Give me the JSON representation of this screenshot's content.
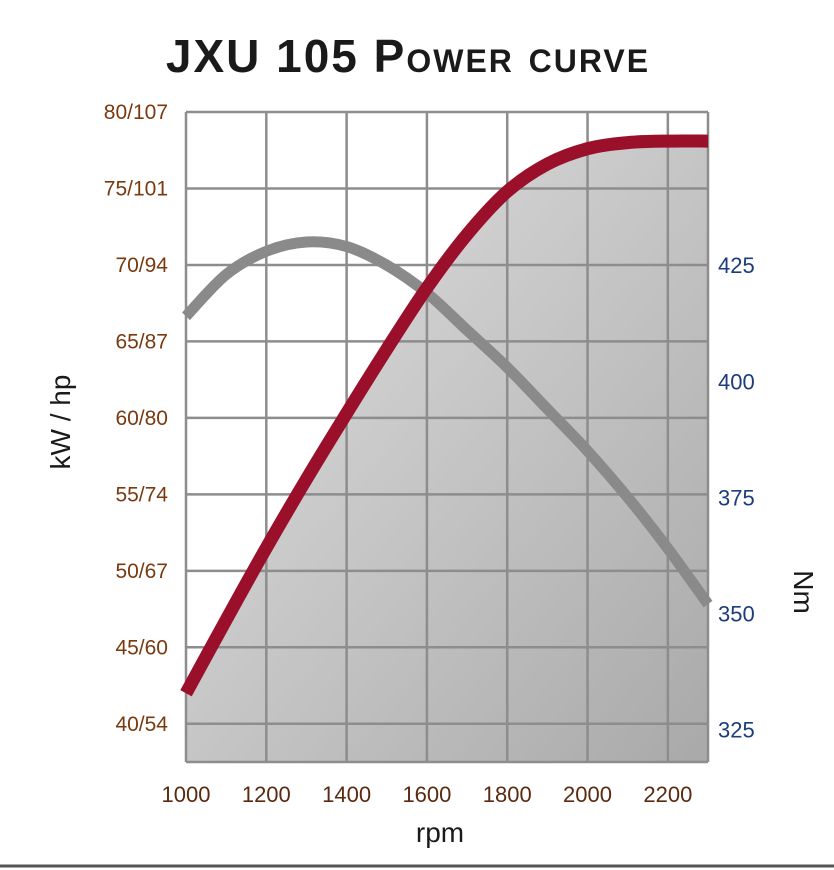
{
  "chart_data": {
    "type": "line",
    "title": "JXU 105 Power curve",
    "xlabel": "rpm",
    "ylabel_left": "kW / hp",
    "ylabel_right": "Nm",
    "x_ticks": [
      "1000",
      "1200",
      "1400",
      "1600",
      "1800",
      "2000",
      "2200"
    ],
    "xlim": [
      1000,
      2300
    ],
    "y_left_ticks": [
      "40/54",
      "45/60",
      "50/67",
      "55/74",
      "60/80",
      "65/87",
      "70/94",
      "75/101",
      "80/107"
    ],
    "y_left_lim": [
      37.5,
      80
    ],
    "y_right_ticks": [
      "325",
      "350",
      "375",
      "400",
      "425"
    ],
    "y_right_lim": [
      318,
      458
    ],
    "grid": true,
    "series": [
      {
        "name": "kW / hp",
        "axis": "left",
        "color": "#9a0f2a",
        "filled": true,
        "x": [
          1000,
          1100,
          1200,
          1300,
          1400,
          1500,
          1600,
          1700,
          1800,
          1900,
          2000,
          2100,
          2200,
          2300
        ],
        "y": [
          42.0,
          46.8,
          51.5,
          56.0,
          60.3,
          64.5,
          68.5,
          72.0,
          74.8,
          76.6,
          77.6,
          78.0,
          78.1,
          78.1
        ]
      },
      {
        "name": "Nm",
        "axis": "right",
        "color": "#8a8a8a",
        "filled": false,
        "x": [
          1000,
          1100,
          1200,
          1300,
          1400,
          1500,
          1600,
          1700,
          1800,
          1900,
          2000,
          2100,
          2200,
          2300
        ],
        "y": [
          414,
          423,
          428,
          430,
          429,
          425,
          419,
          411,
          403,
          394,
          385,
          375,
          364,
          352
        ]
      }
    ]
  }
}
